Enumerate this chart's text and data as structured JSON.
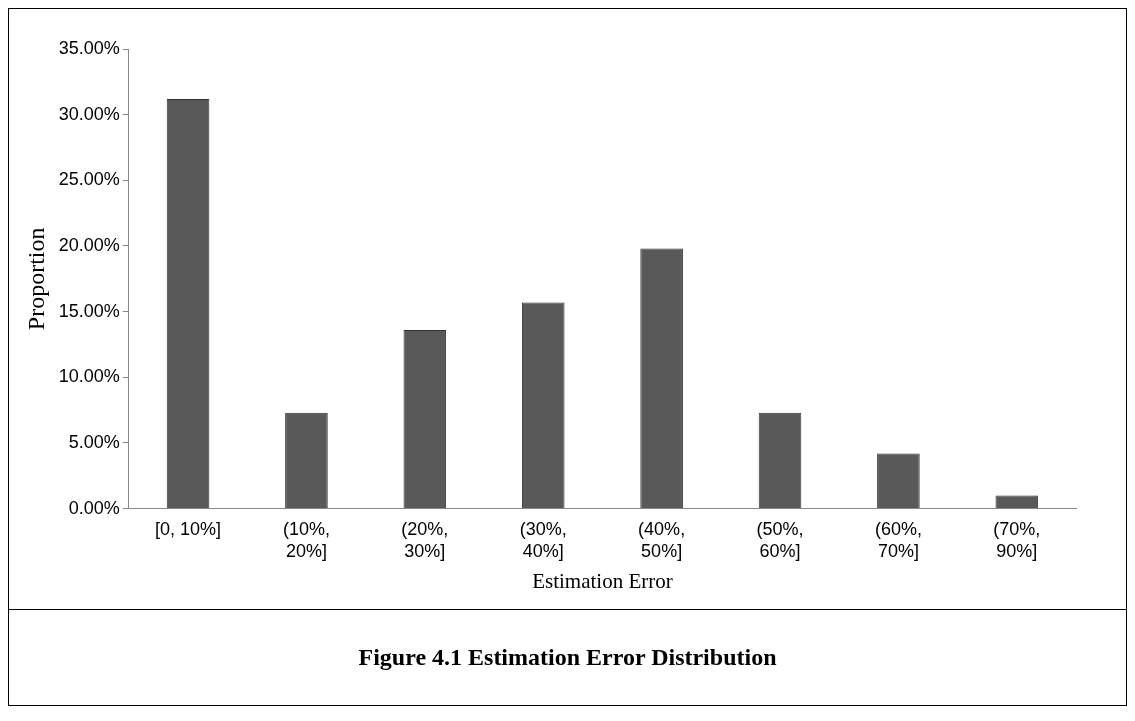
{
  "chart_data": {
    "type": "bar",
    "title": "Figure 4.1 Estimation Error Distribution",
    "xlabel": "Estimation Error",
    "ylabel": "Proportion",
    "categories": [
      "[0, 10%]",
      "(10%, 20%]",
      "(20%, 30%]",
      "(30%, 40%]",
      "(40%, 50%]",
      "(50%, 60%]",
      "(60%, 70%]",
      "(70%, 90%]"
    ],
    "values": [
      31.2,
      7.3,
      13.6,
      15.7,
      19.8,
      7.3,
      4.2,
      1.0
    ],
    "color": "#595959",
    "ylim": [
      0,
      35
    ],
    "yticks": [
      {
        "value": 0,
        "label": "0.00%"
      },
      {
        "value": 5,
        "label": "5.00%"
      },
      {
        "value": 10,
        "label": "10.00%"
      },
      {
        "value": 15,
        "label": "15.00%"
      },
      {
        "value": 20,
        "label": "20.00%"
      },
      {
        "value": 25,
        "label": "25.00%"
      },
      {
        "value": 30,
        "label": "30.00%"
      },
      {
        "value": 35,
        "label": "35.00%"
      }
    ],
    "grid": false,
    "legend": false
  }
}
